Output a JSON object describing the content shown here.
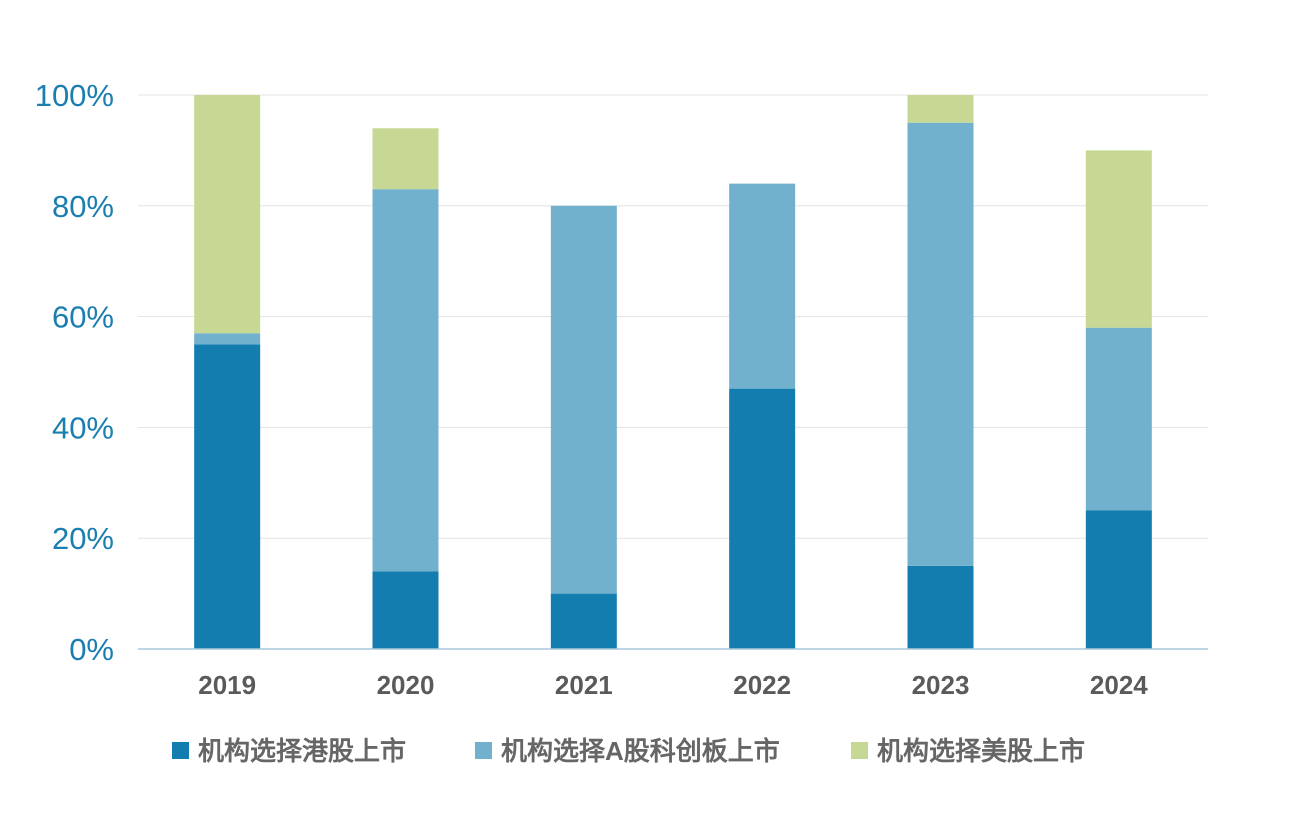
{
  "chart_data": {
    "type": "bar",
    "stacked": true,
    "categories": [
      "2019",
      "2020",
      "2021",
      "2022",
      "2023",
      "2024"
    ],
    "series": [
      {
        "name": "机构选择港股上市",
        "color": "#137db0",
        "values": [
          55,
          14,
          10,
          47,
          15,
          25
        ]
      },
      {
        "name": "机构选择A股科创板上市",
        "color": "#72b1ce",
        "values": [
          2,
          69,
          70,
          37,
          80,
          33
        ]
      },
      {
        "name": "机构选择美股上市",
        "color": "#c6d894",
        "values": [
          43,
          11,
          0,
          0,
          5,
          32
        ]
      }
    ],
    "y_ticks": [
      "0%",
      "20%",
      "40%",
      "60%",
      "80%",
      "100%"
    ],
    "ylim": [
      0,
      100
    ],
    "y_unit": "%",
    "grid": true,
    "legend_position": "bottom"
  }
}
